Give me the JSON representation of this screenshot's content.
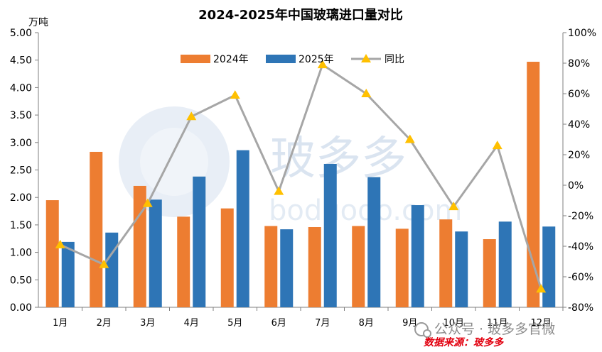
{
  "chart_data": {
    "type": "bar+line",
    "title": "2024-2025年中国玻璃进口量对比",
    "left_axis": {
      "unit_label": "万吨",
      "range": [
        0,
        5
      ],
      "ticks": [
        "0.00",
        "0.50",
        "1.00",
        "1.50",
        "2.00",
        "2.50",
        "3.00",
        "3.50",
        "4.00",
        "4.50",
        "5.00"
      ]
    },
    "right_axis": {
      "range": [
        -80,
        100
      ],
      "ticks": [
        "-80%",
        "-60%",
        "-40%",
        "-20%",
        "0%",
        "20%",
        "40%",
        "60%",
        "80%",
        "100%"
      ]
    },
    "categories": [
      "1月",
      "2月",
      "3月",
      "4月",
      "5月",
      "6月",
      "7月",
      "8月",
      "9月",
      "10月",
      "11月",
      "12月"
    ],
    "series": [
      {
        "name": "2024年",
        "kind": "bar",
        "axis": "left",
        "color": "#ed7d31",
        "values": [
          1.95,
          2.83,
          2.21,
          1.65,
          1.8,
          1.48,
          1.46,
          1.48,
          1.43,
          1.6,
          1.24,
          4.47
        ]
      },
      {
        "name": "2025年",
        "kind": "bar",
        "axis": "left",
        "color": "#2e75b6",
        "values": [
          1.19,
          1.36,
          1.96,
          2.38,
          2.86,
          1.42,
          2.61,
          2.37,
          1.86,
          1.38,
          1.56,
          1.47
        ]
      },
      {
        "name": "同比",
        "kind": "line",
        "axis": "right",
        "line_color": "#a6a6a6",
        "marker_color": "#ffc000",
        "values": [
          -39,
          -52,
          -12,
          45,
          59,
          -4,
          79,
          60,
          30,
          -14,
          26,
          -68
        ]
      }
    ],
    "legend_position": "top-center"
  },
  "watermark": {
    "text": "玻多多",
    "subtext": "boduodo.com"
  },
  "footer": {
    "wechat_label": "公众号 · 玻多多官微",
    "source_label": "数据来源：玻多多"
  }
}
